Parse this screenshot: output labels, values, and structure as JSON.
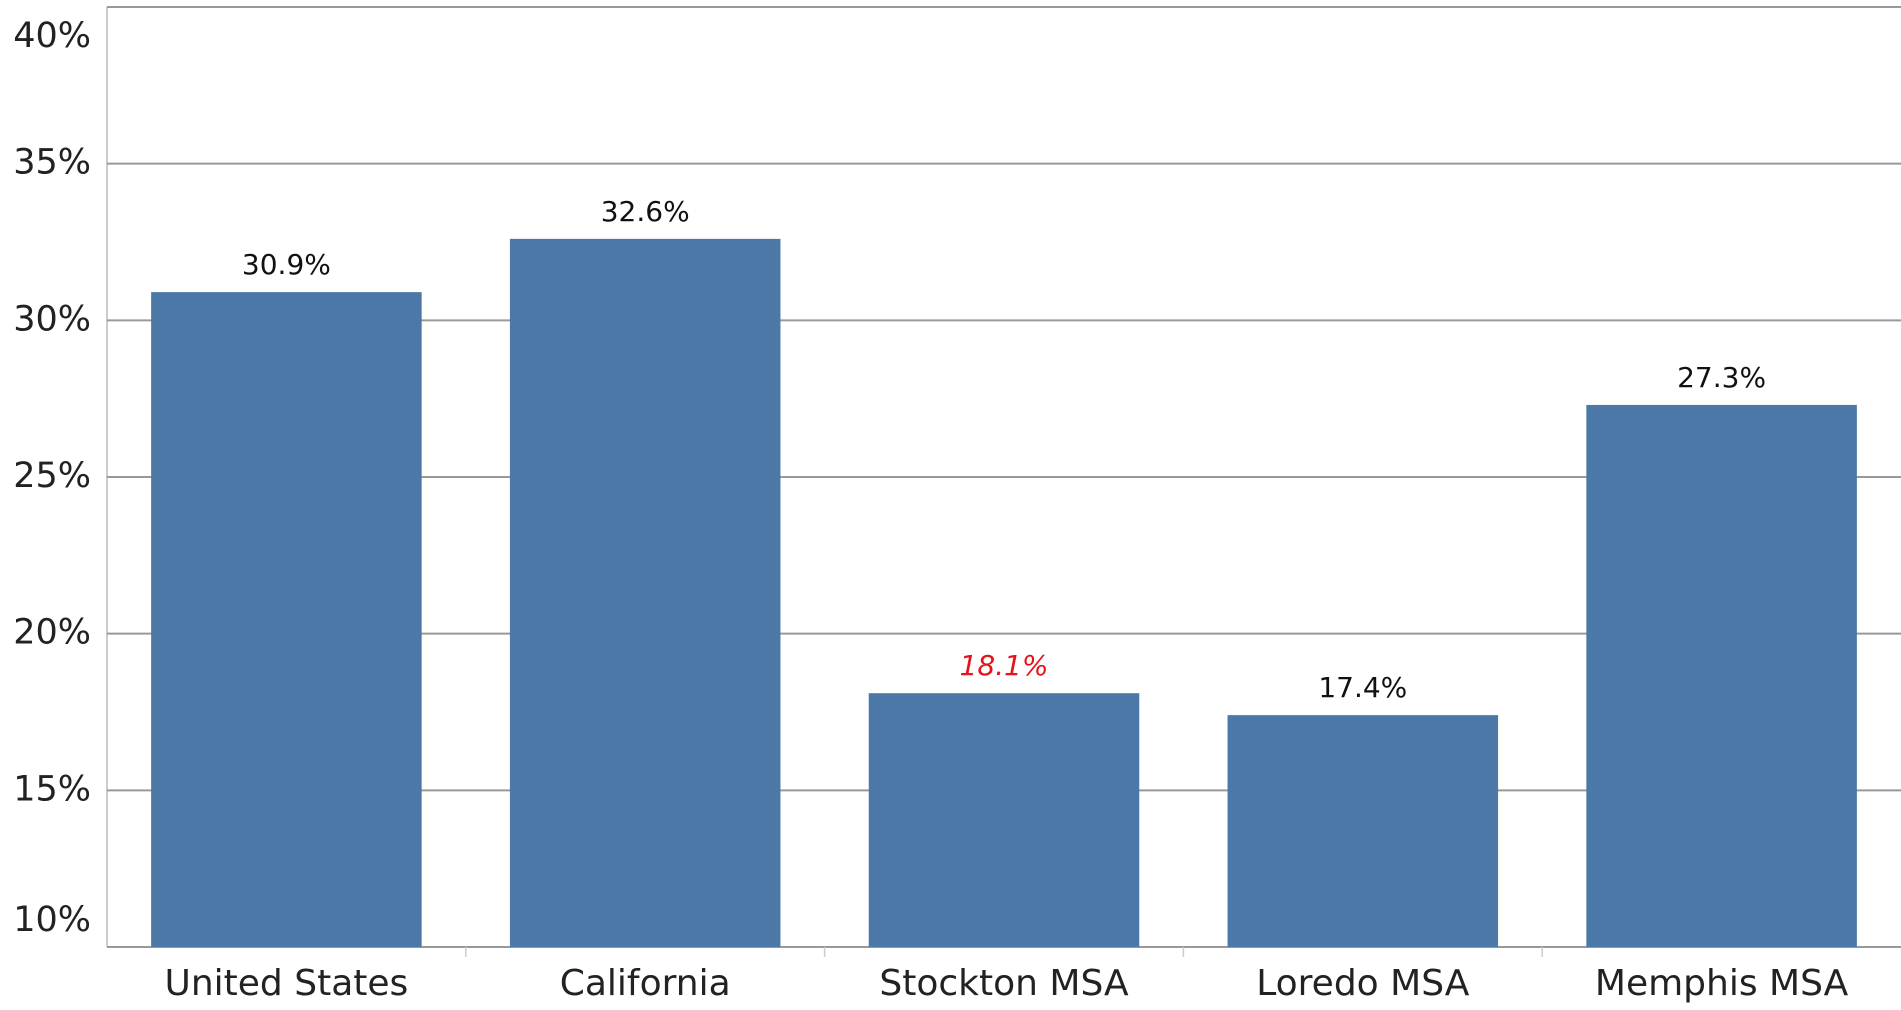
{
  "chart_data": {
    "type": "bar",
    "categories": [
      "United States",
      "California",
      "Stockton MSA",
      "Loredo MSA",
      "Memphis MSA"
    ],
    "values": [
      30.9,
      32.6,
      18.1,
      17.4,
      27.3
    ],
    "value_labels": [
      "30.9%",
      "32.6%",
      "18.1%",
      "17.4%",
      "27.3%"
    ],
    "value_label_colors": [
      "#111111",
      "#111111",
      "#e8121b",
      "#111111",
      "#111111"
    ],
    "value_label_styles": [
      "normal",
      "normal",
      "italic",
      "normal",
      "normal"
    ],
    "color": "#4c78a8",
    "ylim": [
      10,
      40
    ],
    "yticks": [
      {
        "value": 10,
        "label": "10%"
      },
      {
        "value": 15,
        "label": "15%"
      },
      {
        "value": 20,
        "label": "20%"
      },
      {
        "value": 25,
        "label": "25%"
      },
      {
        "value": 30,
        "label": "30%"
      },
      {
        "value": 35,
        "label": "35%"
      },
      {
        "value": 40,
        "label": "40%"
      }
    ],
    "grid": true
  }
}
